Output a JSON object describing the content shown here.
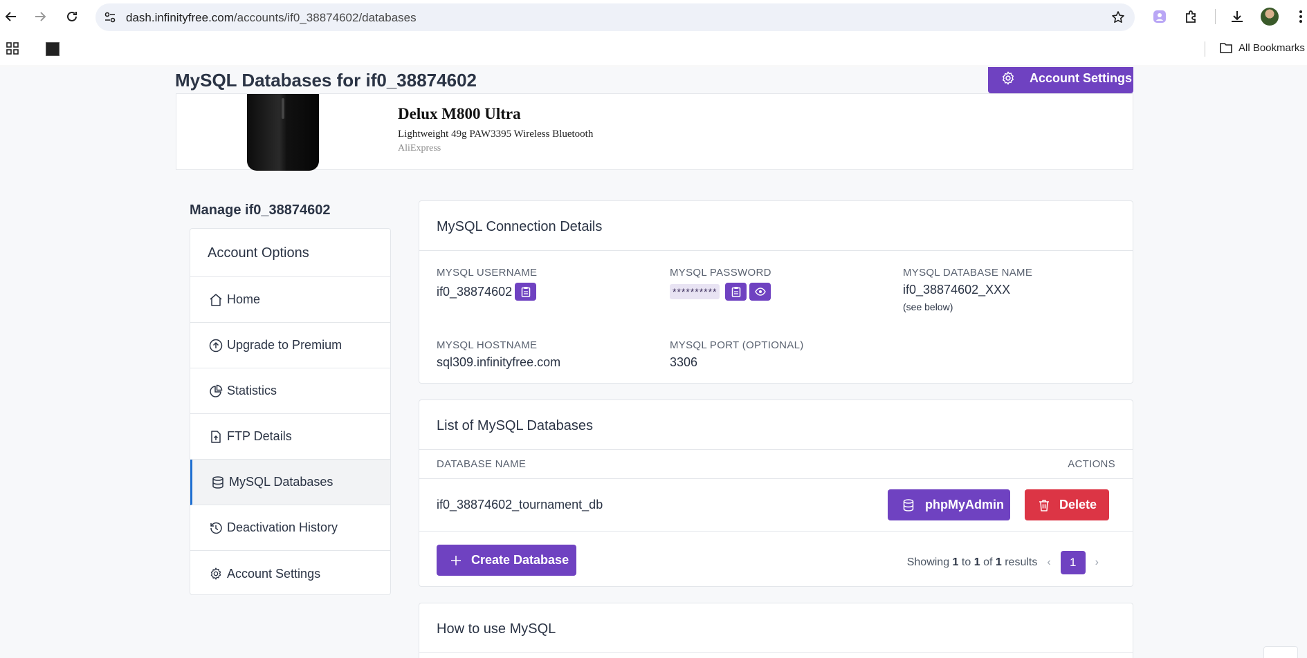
{
  "browser": {
    "url_host": "dash.infinityfree.com",
    "url_path": "/accounts/if0_38874602/databases",
    "bookmarks_label": "All Bookmarks"
  },
  "page": {
    "title": "MySQL Databases for if0_38874602",
    "account_settings_label": "Account Settings"
  },
  "ad": {
    "title": "Delux M800 Ultra",
    "subtitle": "Lightweight 49g PAW3395 Wireless Bluetooth",
    "source": "AliExpress"
  },
  "sidebar": {
    "manage_title": "Manage if0_38874602",
    "header": "Account Options",
    "items": [
      {
        "label": "Home",
        "icon": "home-icon"
      },
      {
        "label": "Upgrade to Premium",
        "icon": "arrow-up-circle-icon"
      },
      {
        "label": "Statistics",
        "icon": "pie-chart-icon"
      },
      {
        "label": "FTP Details",
        "icon": "file-upload-icon"
      },
      {
        "label": "MySQL Databases",
        "icon": "database-icon",
        "active": true
      },
      {
        "label": "Deactivation History",
        "icon": "history-icon"
      },
      {
        "label": "Account Settings",
        "icon": "gear-icon"
      }
    ]
  },
  "connection": {
    "title": "MySQL Connection Details",
    "username_label": "MYSQL USERNAME",
    "username": "if0_38874602",
    "password_label": "MYSQL PASSWORD",
    "password_mask": "**********",
    "dbname_label": "MYSQL DATABASE NAME",
    "dbname": "if0_38874602_XXX",
    "dbname_note": "(see below)",
    "hostname_label": "MYSQL HOSTNAME",
    "hostname": "sql309.infinityfree.com",
    "port_label": "MYSQL PORT (OPTIONAL)",
    "port": "3306"
  },
  "databases": {
    "title": "List of MySQL Databases",
    "col_name": "DATABASE NAME",
    "col_actions": "ACTIONS",
    "rows": [
      {
        "name": "if0_38874602_tournament_db"
      }
    ],
    "phpmyadmin_label": "phpMyAdmin",
    "delete_label": "Delete",
    "create_label": "Create Database",
    "showing_prefix": "Showing",
    "from": "1",
    "to_word": "to",
    "to": "1",
    "of_word": "of",
    "total": "1",
    "results_word": "results",
    "current_page": "1"
  },
  "howto": {
    "title": "How to use MySQL"
  },
  "colors": {
    "primary": "#6f42c1",
    "danger": "#dc3545",
    "active_border": "#1f6fd1"
  }
}
